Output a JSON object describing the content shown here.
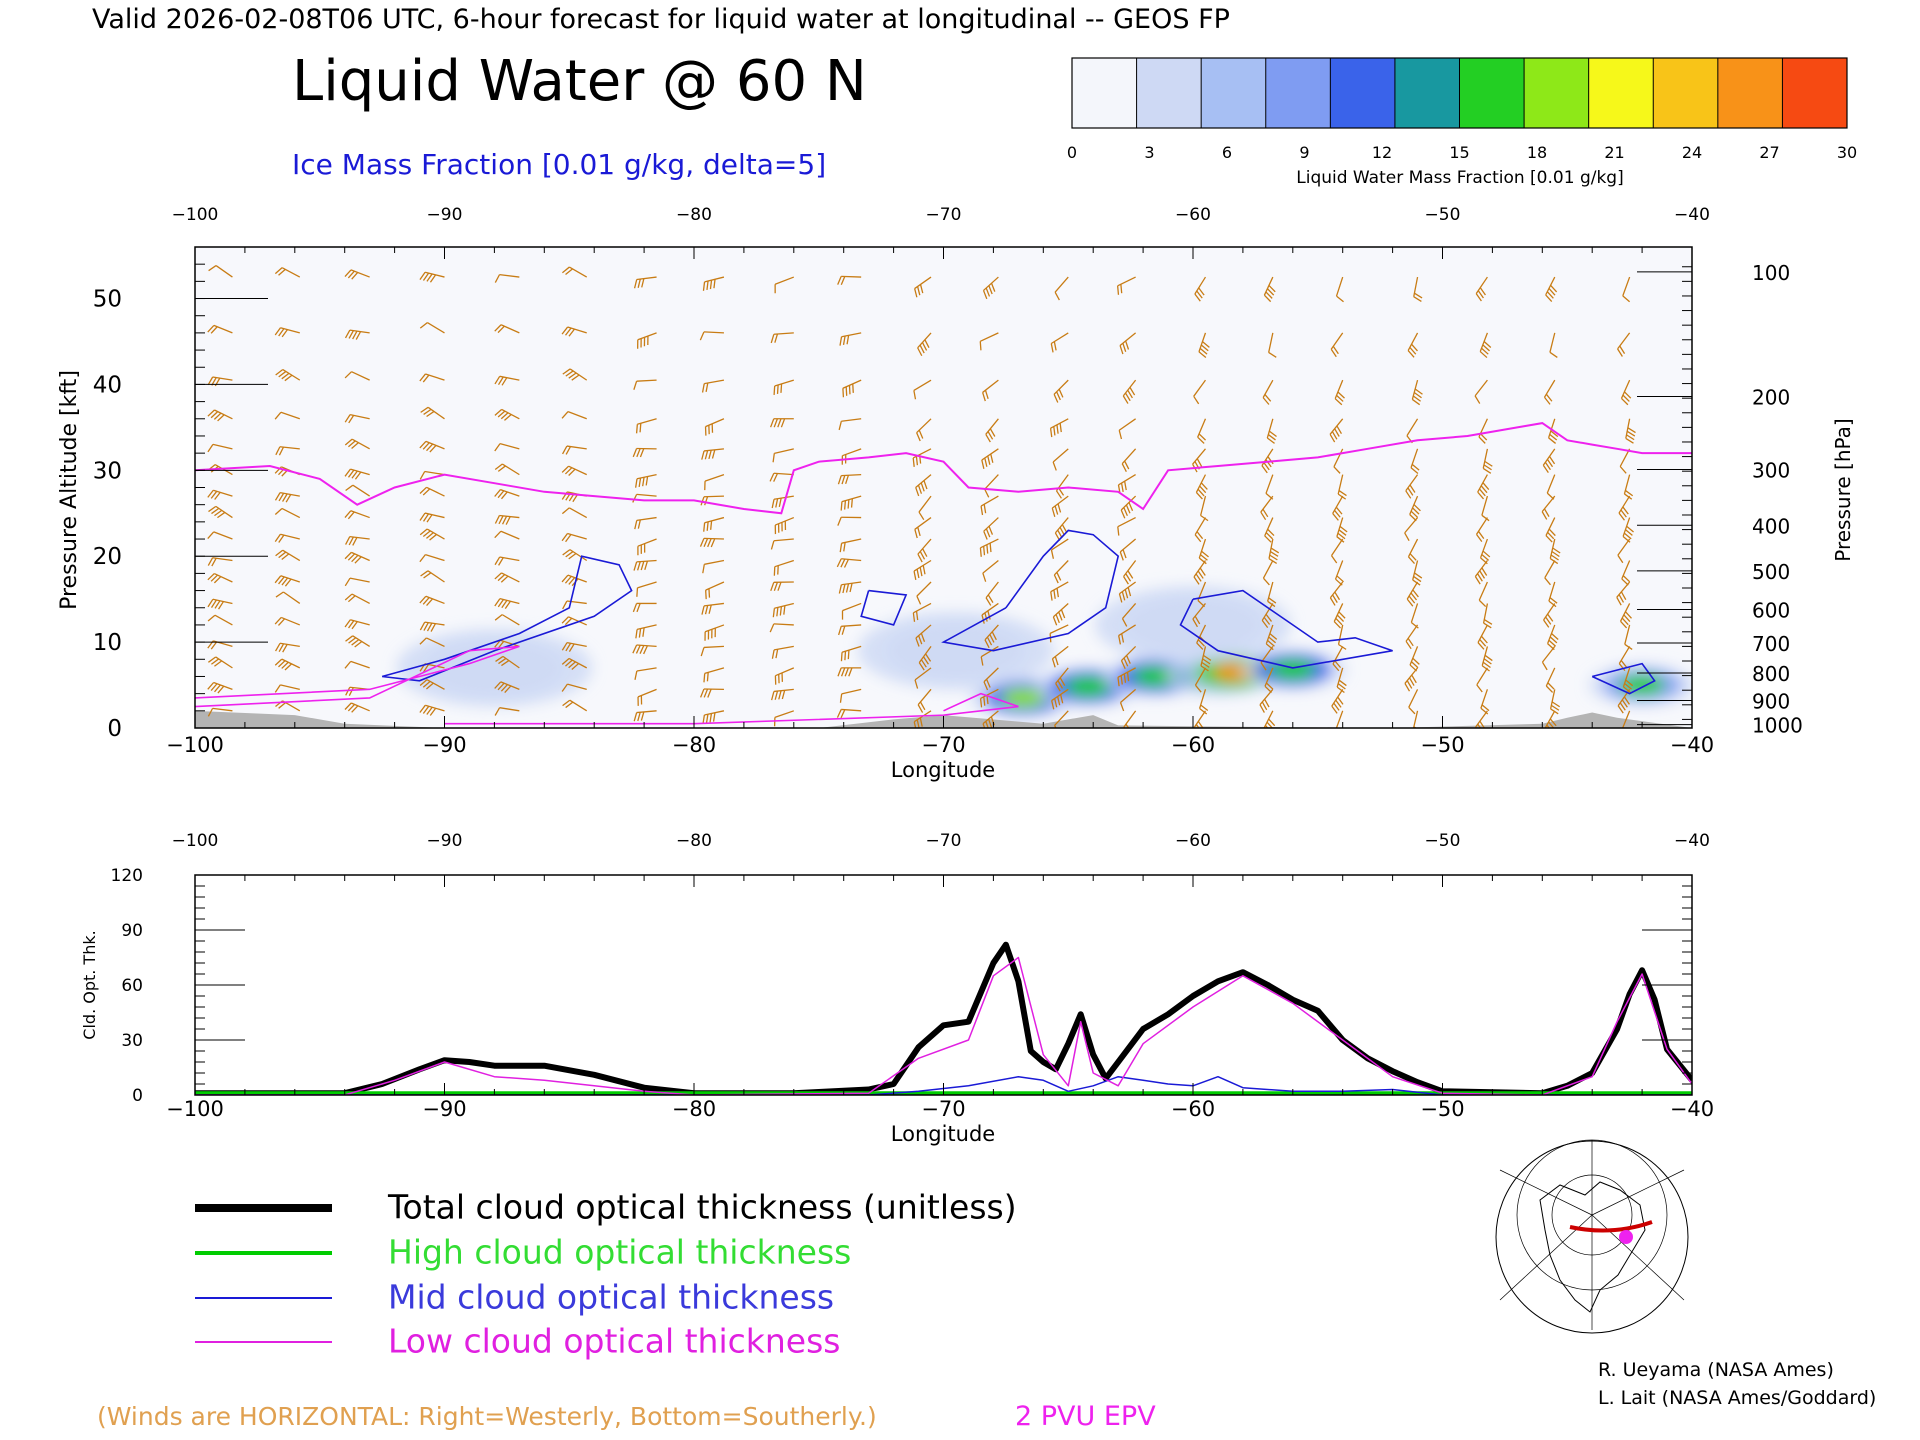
{
  "header": {
    "valid_line": "Valid 2026-02-08T06 UTC, 6-hour forecast for liquid water at longitudinal -- GEOS FP",
    "main_title": "Liquid Water @ 60 N",
    "ice_label": "Ice Mass Fraction [0.01 g/kg, delta=5]"
  },
  "colorbar": {
    "title": "Liquid Water Mass Fraction [0.01 g/kg]",
    "ticks": [
      "0",
      "3",
      "6",
      "9",
      "12",
      "15",
      "18",
      "21",
      "24",
      "27",
      "30"
    ],
    "colors": [
      "#f4f6fb",
      "#ced9f4",
      "#a7bff3",
      "#7f9cf2",
      "#3a63ea",
      "#1898a0",
      "#23cf23",
      "#8ee818",
      "#f6f81a",
      "#f8c418",
      "#f89218",
      "#f64a12"
    ]
  },
  "colors": {
    "wind": "#c87c14",
    "ice": "#1a1ad6",
    "epv": "#ee22ee",
    "total": "#000000",
    "high": "#00cc00",
    "mid": "#1a1ad6",
    "low": "#e020e0",
    "terrain": "#b4b4b4"
  },
  "chart_data": [
    {
      "type": "heatmap",
      "xlabel": "Longitude",
      "ylabel": "Pressure Altitude [kft]",
      "y2label": "Pressure [hPa]",
      "xlim": [
        -100,
        -40
      ],
      "ylim": [
        0,
        56
      ],
      "x_ticks": [
        "-100",
        "-90",
        "-80",
        "-70",
        "-60",
        "-50",
        "-40"
      ],
      "y_ticks": [
        "0",
        "10",
        "20",
        "30",
        "40",
        "50"
      ],
      "pressure_ticks": [
        "100",
        "200",
        "300",
        "400",
        "500",
        "600",
        "700",
        "800",
        "900",
        "1000"
      ],
      "pressure_alt_kft": [
        53.1,
        38.6,
        30.1,
        23.6,
        18.3,
        13.8,
        9.9,
        6.4,
        3.2,
        0.4
      ],
      "liquid_blobs": [
        {
          "lon": -88,
          "alt": 7,
          "value": 4
        },
        {
          "lon": -66.8,
          "alt": 3.5,
          "value": 18
        },
        {
          "lon": -64.2,
          "alt": 4.8,
          "value": 16
        },
        {
          "lon": -61.5,
          "alt": 6,
          "value": 17
        },
        {
          "lon": -59,
          "alt": 6.2,
          "value": 22
        },
        {
          "lon": -58.3,
          "alt": 6.5,
          "value": 27
        },
        {
          "lon": -56,
          "alt": 6.8,
          "value": 17
        },
        {
          "lon": -42,
          "alt": 5,
          "value": 15
        },
        {
          "lon": -69.5,
          "alt": 9,
          "value": 4
        },
        {
          "lon": -60,
          "alt": 12,
          "value": 4
        }
      ],
      "ice_contours": [
        [
          [
            -92.5,
            6
          ],
          [
            -90,
            8
          ],
          [
            -87,
            11
          ],
          [
            -85,
            14
          ],
          [
            -84.5,
            20
          ],
          [
            -83,
            19
          ],
          [
            -82.5,
            16
          ],
          [
            -84,
            13
          ],
          [
            -88,
            9
          ],
          [
            -91,
            5.5
          ],
          [
            -92.5,
            6
          ]
        ],
        [
          [
            -67.5,
            14
          ],
          [
            -66,
            20
          ],
          [
            -65,
            23
          ],
          [
            -64,
            22.5
          ],
          [
            -63,
            20
          ],
          [
            -63.5,
            14
          ],
          [
            -65,
            11
          ],
          [
            -68,
            9
          ],
          [
            -70,
            10
          ],
          [
            -67.5,
            14
          ]
        ],
        [
          [
            -60,
            15
          ],
          [
            -58,
            16
          ],
          [
            -56,
            12
          ],
          [
            -55,
            10
          ],
          [
            -53.5,
            10.5
          ],
          [
            -52,
            9
          ],
          [
            -56,
            7
          ],
          [
            -59,
            9
          ],
          [
            -60.5,
            12
          ],
          [
            -60,
            15
          ]
        ],
        [
          [
            -73,
            16
          ],
          [
            -71.5,
            15.5
          ],
          [
            -72,
            12
          ],
          [
            -73.3,
            13
          ],
          [
            -73,
            16
          ]
        ],
        [
          [
            -44,
            6
          ],
          [
            -42,
            7.5
          ],
          [
            -41.5,
            5.5
          ],
          [
            -42.5,
            4
          ],
          [
            -44,
            6
          ]
        ]
      ],
      "epv_2pvu": {
        "lon": [
          -100,
          -97,
          -95,
          -93.5,
          -92,
          -90,
          -88,
          -86,
          -84,
          -82,
          -80,
          -78,
          -76.5,
          -76,
          -75,
          -73,
          -71.5,
          -70,
          -69,
          -67,
          -65,
          -63,
          -62,
          -61,
          -59,
          -57,
          -55,
          -53,
          -51,
          -49,
          -47,
          -46,
          -45,
          -44,
          -43,
          -42,
          -40
        ],
        "alt_kft": [
          30,
          30.5,
          29,
          26,
          28,
          29.5,
          28.5,
          27.5,
          27,
          26.5,
          26.5,
          25.5,
          25,
          30,
          31,
          31.5,
          32,
          31,
          28,
          27.5,
          28,
          27.5,
          25.5,
          30,
          30.5,
          31,
          31.5,
          32.5,
          33.5,
          34,
          35,
          35.5,
          33.5,
          33,
          32.5,
          32,
          32
        ]
      },
      "terrain_kft": {
        "lon": [
          -100,
          -96,
          -94,
          -90,
          -75,
          -72,
          -70,
          -66,
          -64,
          -63,
          -60,
          -52,
          -46,
          -45,
          -44,
          -43,
          -40
        ],
        "alt_kft": [
          2,
          1.5,
          0.5,
          0,
          0,
          1,
          1.5,
          0.5,
          1.5,
          0.3,
          0.2,
          0,
          0.5,
          1.2,
          1.8,
          1.2,
          0
        ]
      }
    },
    {
      "type": "line",
      "xlabel": "Longitude",
      "ylabel": "Cld. Opt. Thk.",
      "xlim": [
        -100,
        -40
      ],
      "ylim": [
        0,
        120
      ],
      "x_ticks": [
        "-100",
        "-90",
        "-80",
        "-70",
        "-60",
        "-50",
        "-40"
      ],
      "y_ticks": [
        "0",
        "30",
        "60",
        "90",
        "120"
      ],
      "series": [
        {
          "name": "Total cloud optical thickness (unitless)",
          "x": [
            -100,
            -94,
            -92.5,
            -91,
            -90,
            -89,
            -88,
            -86,
            -84,
            -82,
            -80,
            -76,
            -73,
            -72,
            -71,
            -70,
            -69,
            -68,
            -67.5,
            -67,
            -66.5,
            -66,
            -65.5,
            -65,
            -64.5,
            -64,
            -63.5,
            -63,
            -62,
            -61,
            -60,
            -59,
            -58,
            -57,
            -56,
            -55,
            -54,
            -53,
            -52,
            -51,
            -50,
            -46,
            -45,
            -44,
            -43,
            -42.5,
            -42,
            -41.5,
            -41,
            -40
          ],
          "y": [
            1,
            1,
            6,
            14,
            19,
            18,
            16,
            16,
            11,
            4,
            1,
            1,
            3,
            6,
            26,
            38,
            40,
            72,
            82,
            62,
            24,
            18,
            14,
            28,
            44,
            22,
            9,
            18,
            36,
            44,
            54,
            62,
            67,
            60,
            52,
            46,
            30,
            20,
            13,
            7,
            2,
            1,
            5,
            12,
            36,
            55,
            68,
            52,
            25,
            8
          ]
        },
        {
          "name": "High cloud optical thickness",
          "x": [
            -100,
            -40
          ],
          "y": [
            1,
            1
          ]
        },
        {
          "name": "Mid cloud optical thickness",
          "x": [
            -100,
            -73,
            -71,
            -69,
            -67,
            -66,
            -65,
            -64,
            -63,
            -62,
            -61,
            -60,
            -59,
            -58,
            -56,
            -54,
            -52,
            -50,
            -40
          ],
          "y": [
            0,
            0,
            2,
            5,
            10,
            8,
            2,
            5,
            10,
            8,
            6,
            5,
            10,
            4,
            2,
            2,
            3,
            0,
            0
          ]
        },
        {
          "name": "Low cloud optical thickness",
          "x": [
            -100,
            -94,
            -92,
            -90,
            -88,
            -86,
            -84,
            -82,
            -80,
            -73,
            -71,
            -69,
            -68,
            -67,
            -66,
            -65,
            -64.5,
            -64,
            -63,
            -62,
            -60,
            -58,
            -56,
            -54,
            -52,
            -50,
            -46,
            -44,
            -43,
            -42,
            -41,
            -40
          ],
          "y": [
            0,
            0,
            8,
            18,
            10,
            8,
            5,
            2,
            0,
            1,
            20,
            30,
            65,
            75,
            22,
            5,
            40,
            12,
            5,
            28,
            48,
            65,
            50,
            30,
            10,
            1,
            0,
            10,
            40,
            66,
            25,
            6
          ]
        }
      ]
    }
  ],
  "legend": {
    "total": "Total cloud optical thickness (unitless)",
    "high": "High cloud optical thickness",
    "mid": "Mid cloud optical thickness",
    "low": "Low cloud optical thickness"
  },
  "footer": {
    "winds_note": "(Winds are HORIZONTAL: Right=Westerly, Bottom=Southerly.)",
    "epv_label": "2 PVU EPV",
    "credit1": "R. Ueyama (NASA Ames)",
    "credit2": "L. Lait (NASA Ames/Goddard)"
  }
}
